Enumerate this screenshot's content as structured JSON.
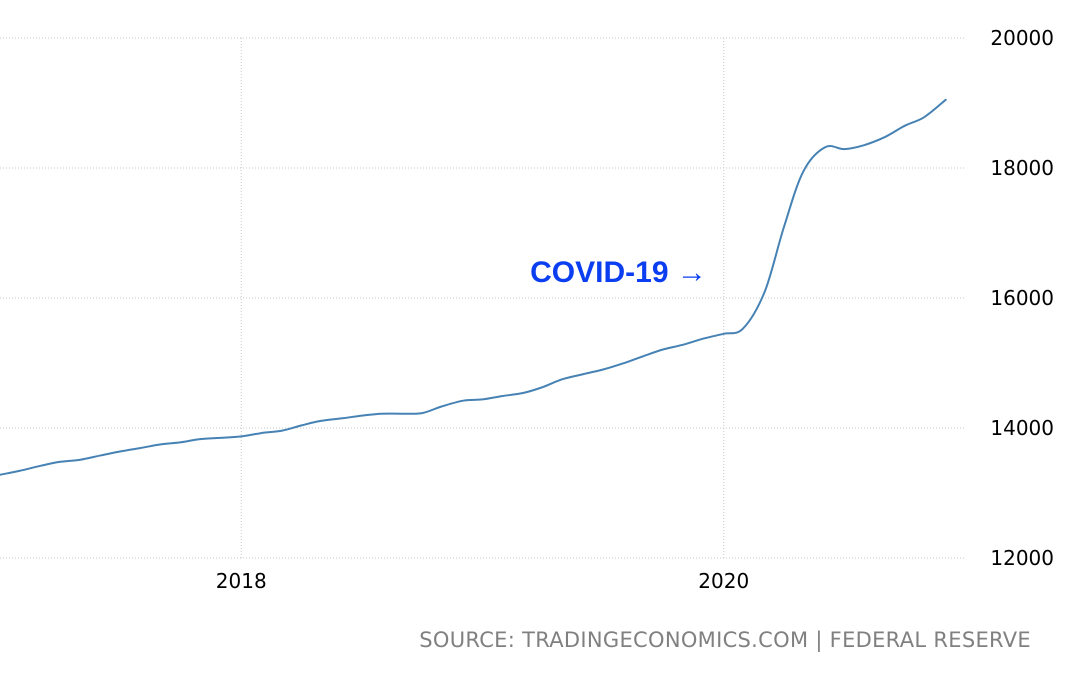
{
  "chart_data": {
    "type": "line",
    "title": "",
    "xlabel": "",
    "ylabel": "",
    "ylim": [
      12000,
      20000
    ],
    "yticks": [
      12000,
      14000,
      16000,
      18000,
      20000
    ],
    "xticks": [
      2018,
      2020
    ],
    "x_range": [
      2017.0,
      2021.0
    ],
    "grid": true,
    "series": [
      {
        "color": "#4682b4",
        "x": [
          2017.0,
          2017.08,
          2017.17,
          2017.25,
          2017.33,
          2017.42,
          2017.5,
          2017.58,
          2017.67,
          2017.75,
          2017.83,
          2017.92,
          2018.0,
          2018.08,
          2018.17,
          2018.25,
          2018.33,
          2018.42,
          2018.5,
          2018.58,
          2018.67,
          2018.75,
          2018.83,
          2018.92,
          2019.0,
          2019.08,
          2019.17,
          2019.25,
          2019.33,
          2019.42,
          2019.5,
          2019.58,
          2019.67,
          2019.75,
          2019.83,
          2019.92,
          2020.0,
          2020.08,
          2020.17,
          2020.25,
          2020.33,
          2020.42,
          2020.5,
          2020.58,
          2020.67,
          2020.75,
          2020.83,
          2020.92
        ],
        "values": [
          13280,
          13340,
          13420,
          13480,
          13510,
          13580,
          13640,
          13690,
          13750,
          13780,
          13830,
          13850,
          13870,
          13920,
          13960,
          14040,
          14110,
          14150,
          14190,
          14220,
          14220,
          14230,
          14330,
          14420,
          14440,
          14490,
          14540,
          14630,
          14750,
          14830,
          14900,
          14990,
          15110,
          15210,
          15280,
          15380,
          15450,
          15530,
          16100,
          17100,
          17950,
          18320,
          18290,
          18350,
          18480,
          18650,
          18780,
          19050
        ]
      }
    ],
    "annotations": [
      {
        "text": "COVID-19 →",
        "color": "#0a3ef0",
        "x": 2019.93,
        "y": 16400
      }
    ]
  },
  "source": "SOURCE: TRADINGECONOMICS.COM | FEDERAL RESERVE"
}
